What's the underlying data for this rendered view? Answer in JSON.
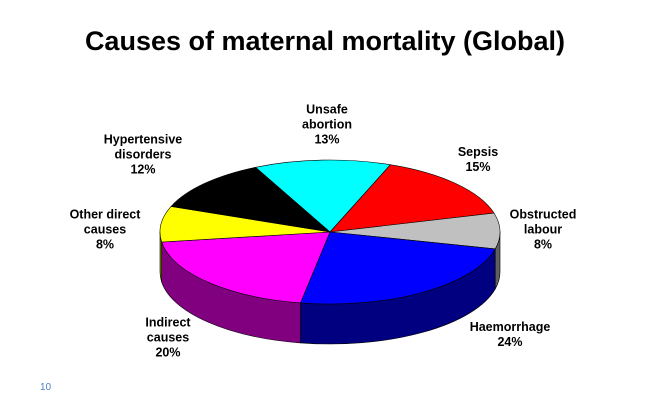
{
  "chart_data": {
    "type": "pie3d",
    "title": "Causes of maternal mortality (Global)",
    "categories": [
      "Unsafe abortion",
      "Sepsis",
      "Obstructed labour",
      "Haemorrhage",
      "Indirect causes",
      "Other direct causes",
      "Hypertensive disorders"
    ],
    "values": [
      13,
      15,
      8,
      24,
      20,
      8,
      12
    ],
    "value_labels": [
      "13%",
      "15%",
      "8%",
      "24%",
      "20%",
      "8%",
      "12%"
    ],
    "colors": [
      "#00ffff",
      "#ff0000",
      "#c0c0c0",
      "#0000ff",
      "#ff00ff",
      "#ffff00",
      "#000000"
    ]
  },
  "page_number": "10"
}
